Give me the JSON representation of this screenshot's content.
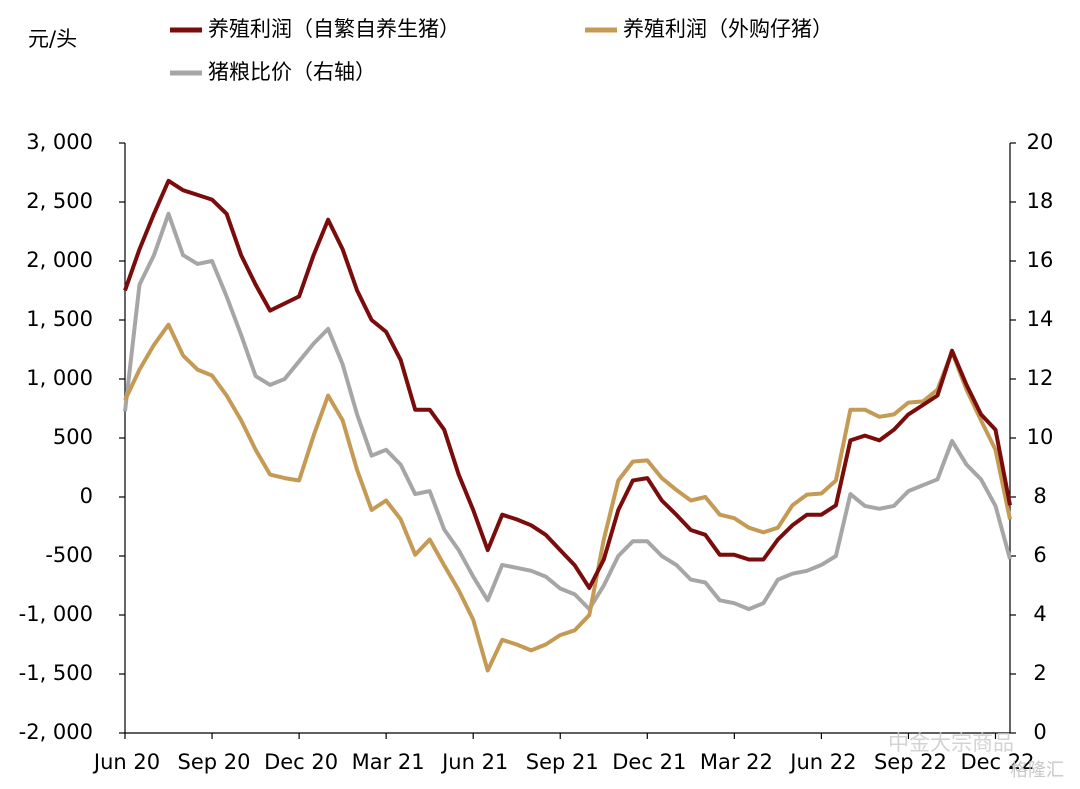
{
  "chart_data": {
    "type": "line",
    "ylabel": "元/头",
    "categories": [
      "Jun 20",
      null,
      null,
      null,
      null,
      null,
      "Sep 20",
      null,
      null,
      null,
      null,
      null,
      "Dec 20",
      null,
      null,
      null,
      null,
      null,
      "Mar 21",
      null,
      null,
      null,
      null,
      null,
      "Jun 21",
      null,
      null,
      null,
      null,
      null,
      "Sep 21",
      null,
      null,
      null,
      null,
      null,
      "Dec 21",
      null,
      null,
      null,
      null,
      null,
      "Mar 22",
      null,
      null,
      null,
      null,
      null,
      "Jun 22",
      null,
      null,
      null,
      null,
      null,
      "Sep 22",
      null,
      null,
      null,
      null,
      null,
      "Dec 22",
      null
    ],
    "series": [
      {
        "name": "养殖利润（自繁自养生猪）",
        "color": "#7b0c0c",
        "values": [
          1750,
          2100,
          2400,
          2680,
          2600,
          2560,
          2520,
          2400,
          2050,
          1800,
          1580,
          1640,
          1700,
          2050,
          2350,
          2100,
          1750,
          1500,
          1400,
          1160,
          740,
          740,
          570,
          190,
          -110,
          -450,
          -150,
          -190,
          -240,
          -320,
          -450,
          -580,
          -770,
          -530,
          -110,
          140,
          160,
          -30,
          -150,
          -280,
          -320,
          -490,
          -490,
          -530,
          -530,
          -360,
          -240,
          -150,
          -150,
          -70,
          480,
          520,
          480,
          570,
          700,
          780,
          860,
          1240,
          950,
          700,
          570,
          -70
        ]
      },
      {
        "name": "养殖利润（外购仔猪）",
        "color": "#c49a55",
        "values": [
          820,
          1080,
          1290,
          1460,
          1200,
          1080,
          1030,
          860,
          650,
          400,
          190,
          160,
          140,
          520,
          860,
          650,
          230,
          -110,
          -30,
          -190,
          -490,
          -360,
          -580,
          -790,
          -1040,
          -1470,
          -1210,
          -1250,
          -1300,
          -1250,
          -1170,
          -1130,
          -1000,
          -360,
          140,
          300,
          310,
          160,
          60,
          -30,
          0,
          -150,
          -180,
          -260,
          -300,
          -260,
          -70,
          20,
          30,
          140,
          740,
          740,
          680,
          700,
          800,
          810,
          910,
          1230,
          910,
          650,
          400,
          -190
        ]
      },
      {
        "name": "猪粮比价（右轴）",
        "color": "#a6a6a6",
        "axis": "y2",
        "values": [
          10.9,
          15.2,
          16.2,
          17.6,
          16.2,
          15.9,
          16.0,
          14.8,
          13.5,
          12.1,
          11.8,
          12.0,
          12.6,
          13.2,
          13.7,
          12.5,
          10.8,
          9.4,
          9.6,
          9.1,
          8.1,
          8.2,
          6.9,
          6.2,
          5.3,
          4.5,
          5.7,
          5.6,
          5.5,
          5.3,
          4.9,
          4.7,
          4.2,
          5.0,
          6.0,
          6.5,
          6.5,
          6.0,
          5.7,
          5.2,
          5.1,
          4.5,
          4.4,
          4.2,
          4.4,
          5.2,
          5.4,
          5.5,
          5.7,
          6.0,
          8.1,
          7.7,
          7.6,
          7.7,
          8.2,
          8.4,
          8.6,
          9.9,
          9.1,
          8.6,
          7.7,
          5.9
        ]
      }
    ],
    "ylim": [
      -2000,
      3000
    ],
    "yticks": [
      {
        "value": -2000,
        "label": "-2, 000"
      },
      {
        "value": -1500,
        "label": "-1, 500"
      },
      {
        "value": -1000,
        "label": "-1, 000"
      },
      -500,
      0,
      500,
      {
        "value": 1000,
        "label": "1, 000"
      },
      {
        "value": 1500,
        "label": "1, 500"
      },
      {
        "value": 2000,
        "label": "2, 000"
      },
      {
        "value": 2500,
        "label": "2, 500"
      },
      {
        "value": 3000,
        "label": "3, 000"
      }
    ],
    "y2lim": [
      0,
      20
    ],
    "y2ticks": [
      0,
      2,
      4,
      6,
      8,
      10,
      12,
      14,
      16,
      18,
      20
    ],
    "grid": false,
    "watermark": [
      "中金大宗商品",
      "格隆汇"
    ]
  }
}
